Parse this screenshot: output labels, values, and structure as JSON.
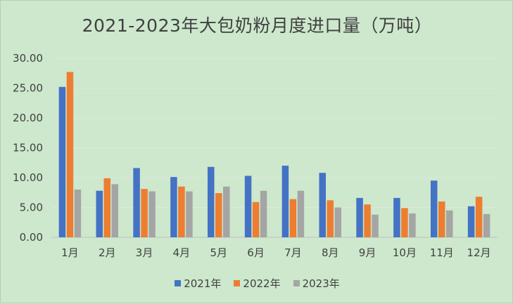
{
  "chart_data": {
    "type": "bar",
    "title": "2021-2023年大包奶粉月度进口量（万吨）",
    "categories": [
      "1月",
      "2月",
      "3月",
      "4月",
      "5月",
      "6月",
      "7月",
      "8月",
      "9月",
      "10月",
      "11月",
      "12月"
    ],
    "series": [
      {
        "name": "2021年",
        "color": "#4472c4",
        "values": [
          25.2,
          7.8,
          11.6,
          10.1,
          11.8,
          10.3,
          12.0,
          10.8,
          6.6,
          6.6,
          9.5,
          5.2
        ]
      },
      {
        "name": "2022年",
        "color": "#ed7d31",
        "values": [
          27.7,
          9.9,
          8.1,
          8.5,
          7.4,
          5.9,
          6.4,
          6.2,
          5.5,
          4.9,
          6.0,
          6.8
        ]
      },
      {
        "name": "2023年",
        "color": "#a5a5a5",
        "values": [
          8.0,
          8.9,
          7.7,
          7.7,
          8.5,
          7.8,
          7.8,
          5.0,
          3.8,
          4.0,
          4.5,
          3.9
        ]
      }
    ],
    "y_ticks": [
      "0.00",
      "5.00",
      "10.00",
      "15.00",
      "20.00",
      "25.00",
      "30.00"
    ],
    "ylim": [
      0,
      30
    ],
    "grid": true,
    "legend_position": "bottom"
  }
}
